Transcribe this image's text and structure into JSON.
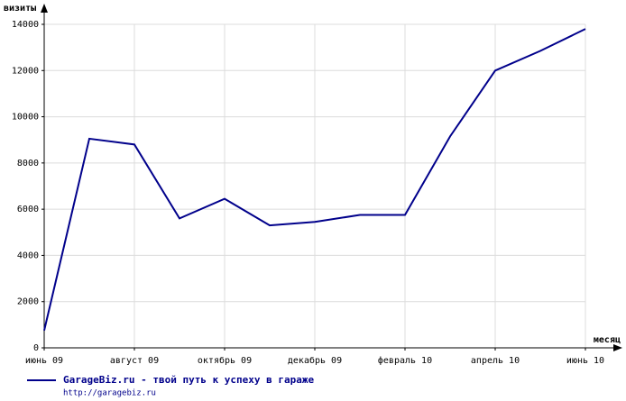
{
  "chart_data": {
    "type": "line",
    "y_label": "визиты",
    "x_label": "месяц",
    "categories": [
      "июнь 09",
      null,
      "август 09",
      null,
      "октябрь 09",
      null,
      "декабрь 09",
      null,
      "февраль 10",
      null,
      "апрель 10",
      null,
      "июнь 10"
    ],
    "series": [
      {
        "name": "GarageBiz.ru - твой путь к успеху в гараже",
        "color": "#00008b",
        "values": [
          750,
          9050,
          8800,
          5600,
          6450,
          5300,
          5450,
          5750,
          5750,
          9150,
          12000,
          12850,
          13800
        ]
      }
    ],
    "legend_subtitle": "http://garagebiz.ru",
    "ylim": [
      0,
      14000
    ],
    "yticks": [
      0,
      2000,
      4000,
      6000,
      8000,
      10000,
      12000,
      14000
    ],
    "grid": true
  }
}
